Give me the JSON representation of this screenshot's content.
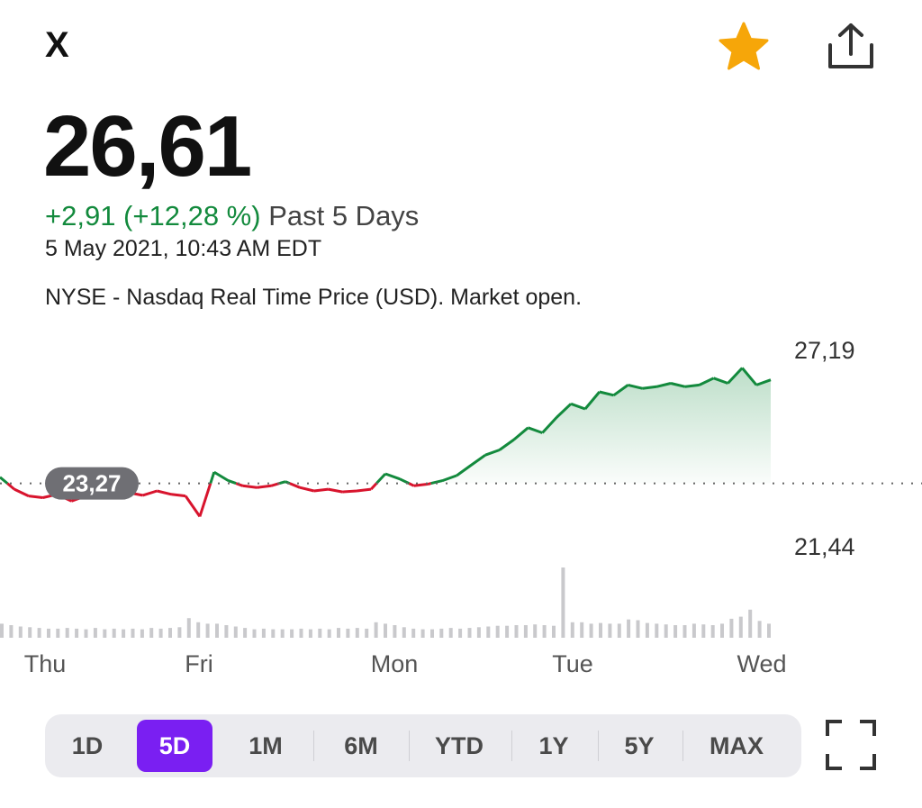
{
  "header": {
    "ticker": "X",
    "favorite_icon": "star-icon",
    "share_icon": "share-icon",
    "accent_star": "#f6a609"
  },
  "quote": {
    "price": "26,61",
    "change": "+2,91 (+12,28 %)",
    "period": "Past 5 Days",
    "timestamp": "5 May 2021, 10:43 AM EDT",
    "source": "NYSE - Nasdaq Real Time Price (USD). Market open."
  },
  "colors": {
    "up": "#138a3d",
    "down": "#d8142d",
    "selected": "#7a1ff2"
  },
  "chart_data": {
    "type": "line",
    "x_labels": [
      "Thu",
      "Fri",
      "Mon",
      "Tue",
      "Wed"
    ],
    "y_labels": [
      "27,19",
      "21,44"
    ],
    "previous_close_label": "23,27",
    "previous_close": 23.27,
    "series": [
      {
        "values": [
          23.45,
          23.1,
          22.9,
          22.85,
          22.95,
          22.75,
          22.9,
          22.85,
          22.95,
          23.0,
          22.92,
          23.05,
          22.95,
          22.9,
          22.3,
          23.6,
          23.35,
          23.2,
          23.15,
          23.2,
          23.32,
          23.15,
          23.05,
          23.1,
          23.02,
          23.05,
          23.1,
          23.55,
          23.4,
          23.2,
          23.25,
          23.35,
          23.5,
          23.8,
          24.1,
          24.25,
          24.55,
          24.9,
          24.75,
          25.2,
          25.6,
          25.45,
          25.95,
          25.85,
          26.15,
          26.05,
          26.1,
          26.2,
          26.1,
          26.15,
          26.35,
          26.2,
          26.65,
          26.15,
          26.3
        ]
      }
    ],
    "volume": [
      0.2,
      0.18,
      0.16,
      0.15,
      0.14,
      0.13,
      0.13,
      0.14,
      0.13,
      0.12,
      0.14,
      0.12,
      0.13,
      0.12,
      0.13,
      0.12,
      0.14,
      0.13,
      0.14,
      0.15,
      0.28,
      0.22,
      0.2,
      0.2,
      0.18,
      0.16,
      0.14,
      0.12,
      0.13,
      0.12,
      0.12,
      0.12,
      0.13,
      0.12,
      0.13,
      0.12,
      0.14,
      0.13,
      0.14,
      0.13,
      0.22,
      0.2,
      0.18,
      0.15,
      0.13,
      0.12,
      0.12,
      0.13,
      0.14,
      0.13,
      0.14,
      0.15,
      0.16,
      0.17,
      0.17,
      0.18,
      0.18,
      0.19,
      0.18,
      0.17,
      1.0,
      0.22,
      0.22,
      0.2,
      0.21,
      0.2,
      0.2,
      0.26,
      0.25,
      0.21,
      0.2,
      0.19,
      0.18,
      0.18,
      0.2,
      0.19,
      0.18,
      0.2,
      0.27,
      0.3,
      0.4,
      0.24,
      0.2
    ]
  },
  "ranges": {
    "items": [
      "1D",
      "5D",
      "1M",
      "6M",
      "YTD",
      "1Y",
      "5Y",
      "MAX"
    ],
    "selected": "5D",
    "fullscreen_icon": "fullscreen-icon"
  }
}
